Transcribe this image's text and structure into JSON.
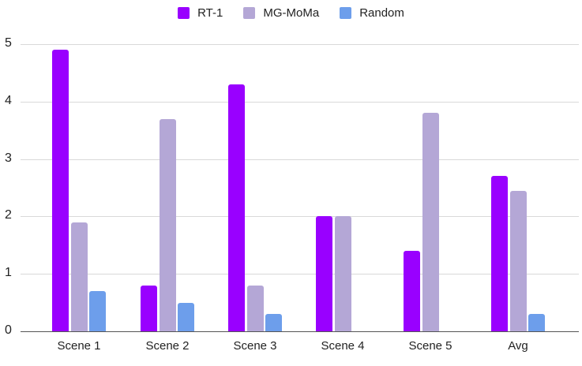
{
  "chart_data": {
    "type": "bar",
    "title": "",
    "xlabel": "",
    "ylabel": "",
    "ylim": [
      0,
      5
    ],
    "yticks": [
      0,
      1,
      2,
      3,
      4,
      5
    ],
    "grid": true,
    "legend_position": "top",
    "categories": [
      "Scene 1",
      "Scene 2",
      "Scene 3",
      "Scene 4",
      "Scene 5",
      "Avg"
    ],
    "series": [
      {
        "name": "RT-1",
        "color": "#9900ff",
        "values": [
          4.9,
          0.8,
          4.3,
          2.0,
          1.4,
          2.7
        ]
      },
      {
        "name": "MG-MoMa",
        "color": "#b4a7d6",
        "values": [
          1.9,
          3.7,
          0.8,
          2.0,
          3.8,
          2.44
        ]
      },
      {
        "name": "Random",
        "color": "#6d9eeb",
        "values": [
          0.7,
          0.5,
          0.3,
          0.0,
          0.0,
          0.3
        ]
      }
    ]
  },
  "legend": [
    {
      "label": "RT-1",
      "color": "#9900ff"
    },
    {
      "label": "MG-MoMa",
      "color": "#b4a7d6"
    },
    {
      "label": "Random",
      "color": "#6d9eeb"
    }
  ]
}
